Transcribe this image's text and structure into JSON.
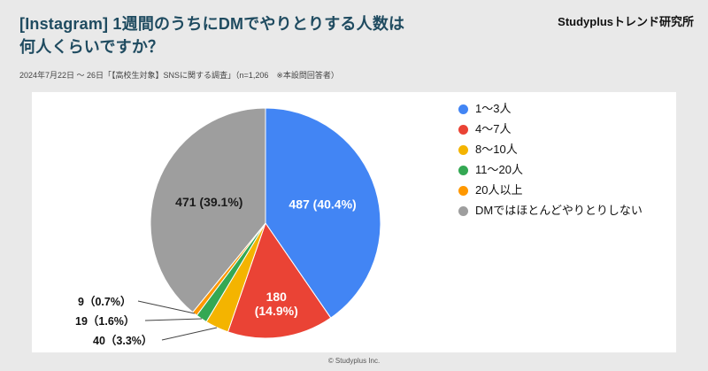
{
  "header": {
    "title_line1": "[Instagram] 1週間のうちにDMでやりとりする人数は",
    "title_line2": "何人くらいですか？",
    "brand": "Studyplusトレンド研究所",
    "subtitle": "2024年7月22日 ～ 26日「【高校生対象】SNSに関する調査」（n=1,206　※本設問回答者）"
  },
  "footer": {
    "copyright": "© Studyplus Inc."
  },
  "chart_data": {
    "type": "pie",
    "title": "[Instagram] 1週間のうちにDMでやりとりする人数は何人くらいですか？",
    "categories": [
      "1～3人",
      "4～7人",
      "8～10人",
      "11～20人",
      "20人以上",
      "DMではほとんどやりとりしない"
    ],
    "values": [
      487,
      180,
      40,
      19,
      9,
      471
    ],
    "percents": [
      40.4,
      14.9,
      3.3,
      1.6,
      0.7,
      39.1
    ],
    "colors": [
      "#4285F4",
      "#EA4335",
      "#F4B400",
      "#34A853",
      "#FF9800",
      "#9E9E9E"
    ],
    "n_total": "n=1,206",
    "legend_position": "right",
    "start_angle_deg": 0,
    "direction": "clockwise",
    "slice_labels": [
      {
        "text": "487 (40.4%)",
        "placement": "inside"
      },
      {
        "lines": [
          "180",
          "(14.9%)"
        ],
        "placement": "inside"
      },
      {
        "text": "40（3.3%）",
        "placement": "outside"
      },
      {
        "text": "19（1.6%）",
        "placement": "outside"
      },
      {
        "text": "9（0.7%）",
        "placement": "outside"
      },
      {
        "text": "471 (39.1%)",
        "placement": "inside"
      }
    ]
  }
}
